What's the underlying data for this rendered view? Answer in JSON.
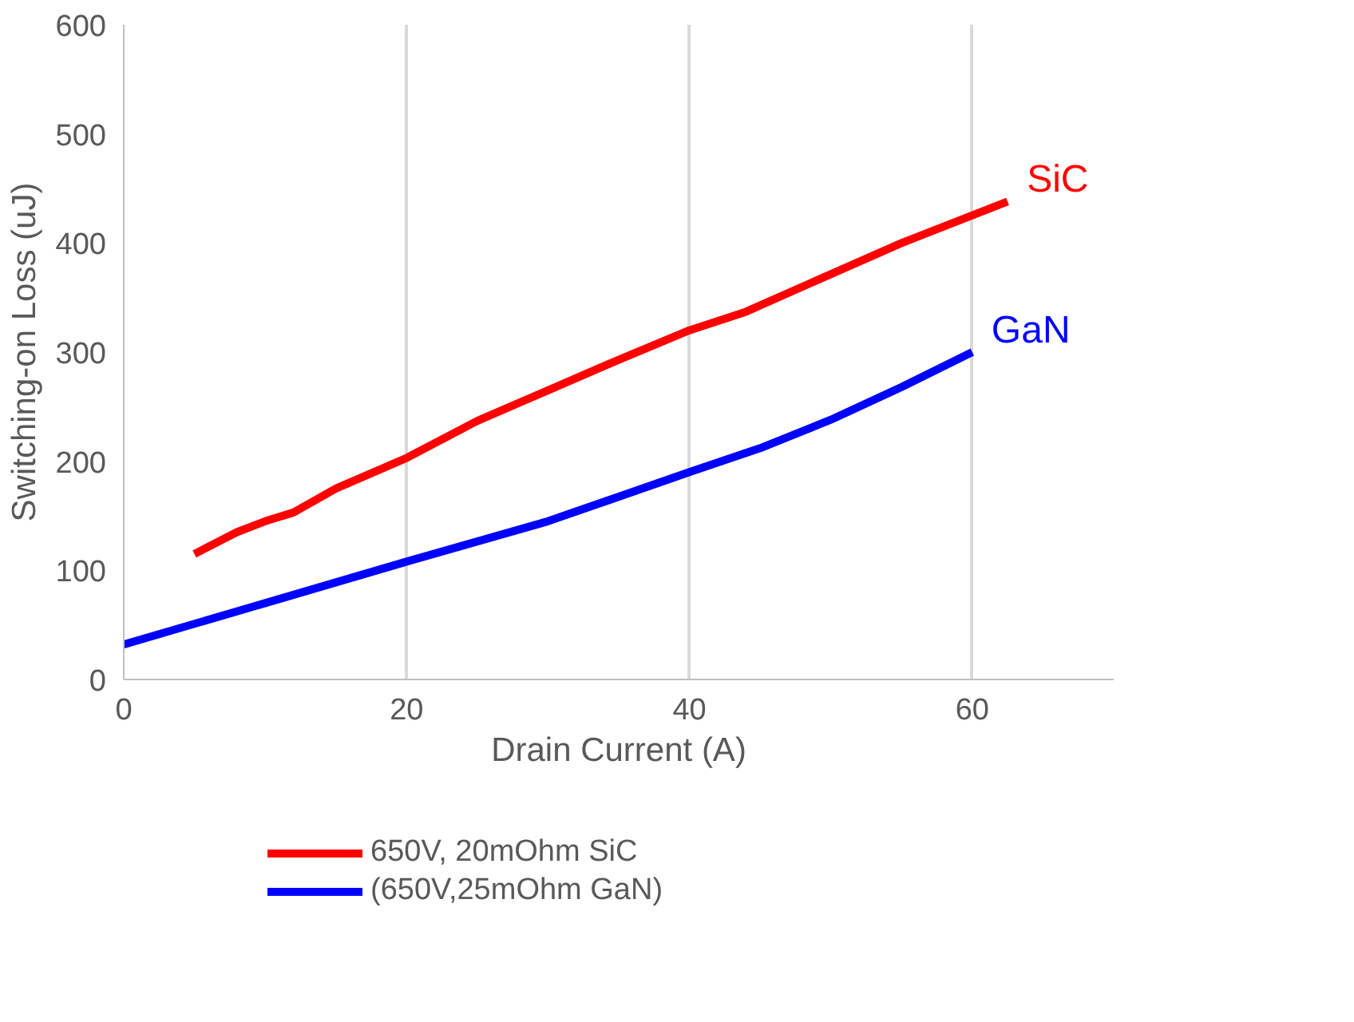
{
  "chart_data": {
    "type": "line",
    "xlabel": "Drain Current (A)",
    "ylabel": "Switching-on Loss (uJ)",
    "xlim": [
      0,
      70
    ],
    "xticks": [
      0,
      20,
      40,
      60
    ],
    "ylim": [
      0,
      600
    ],
    "yticks": [
      0,
      100,
      200,
      300,
      400,
      500,
      600
    ],
    "grid": "x",
    "legend": "bottom",
    "marker": "none",
    "line_style": "solid",
    "series": [
      {
        "name": "650V, 20mOhm SiC",
        "color": "#ff0000",
        "x": [
          5,
          8,
          10,
          12,
          15,
          20,
          25,
          30,
          35,
          40,
          44,
          48,
          55,
          62.5
        ],
        "values": [
          115,
          135,
          145,
          153,
          175,
          203,
          237,
          265,
          293,
          320,
          337,
          360,
          400,
          438
        ]
      },
      {
        "name": "(650V,25mOhm GaN)",
        "color": "#0000ff",
        "x": [
          0,
          10,
          20,
          30,
          40,
          45,
          50,
          55,
          60
        ],
        "values": [
          32,
          70,
          108,
          145,
          190,
          212,
          238,
          268,
          300
        ]
      }
    ],
    "annotations": [
      "SiC",
      "GaN"
    ]
  }
}
